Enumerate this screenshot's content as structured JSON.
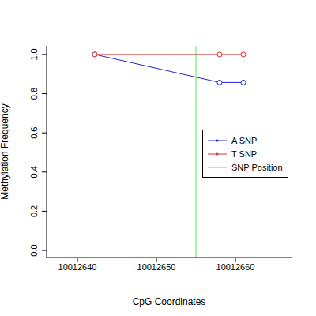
{
  "chart_data": {
    "type": "line",
    "x_label": "CpG Coordinates",
    "y_label": "Methylation Frequency",
    "series": [
      {
        "name": "A SNP",
        "color": "#2424c8",
        "marker": "o",
        "line_style": "solid",
        "x": [
          10012642.2,
          10012658,
          10012661
        ],
        "values": [
          1.0,
          0.857,
          0.857
        ]
      },
      {
        "name": "T SNP",
        "color": "#e03030",
        "marker": "o",
        "line_style": "solid",
        "x": [
          10012642.2,
          10012658,
          10012661
        ],
        "values": [
          1.0,
          1.0,
          1.0
        ]
      }
    ],
    "vlines": [
      {
        "name": "SNP Position",
        "x": 10012655,
        "color": "#55ee55"
      }
    ],
    "xlim": [
      10012636.1,
      10012667.1
    ],
    "xticks": [
      10012640,
      10012650,
      10012660
    ],
    "ylim": [
      -0.036,
      1.044
    ],
    "yticks": [
      {
        "value": 0,
        "label": "0.0"
      },
      {
        "value": 0.2,
        "label": "0.2"
      },
      {
        "value": 0.4,
        "label": "0.4"
      },
      {
        "value": 0.6,
        "label": "0.6"
      },
      {
        "value": 0.8,
        "label": "0.8"
      },
      {
        "value": 1.0,
        "label": "1.0"
      }
    ],
    "legend": "right",
    "grid": false
  }
}
